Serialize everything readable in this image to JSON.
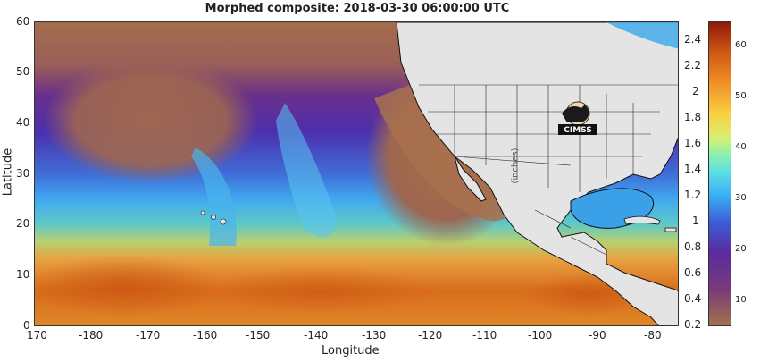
{
  "title": "Morphed composite: 2018-03-30 06:00:00 UTC",
  "x_axis": {
    "label": "Longitude",
    "ticks": [
      "170",
      "-180",
      "-170",
      "-160",
      "-150",
      "-140",
      "-130",
      "-120",
      "-110",
      "-100",
      "-90",
      "-80"
    ]
  },
  "y_axis": {
    "label": "Latitude",
    "ticks": [
      "60",
      "50",
      "40",
      "30",
      "20",
      "10",
      "0"
    ]
  },
  "units_label": "(inches)",
  "colorbar": {
    "left_ticks": [
      "2.4",
      "2.2",
      "2",
      "1.8",
      "1.6",
      "1.4",
      "1.2",
      "1",
      "0.8",
      "0.6",
      "0.4",
      "0.2"
    ],
    "right_ticks": [
      "60",
      "50",
      "40",
      "30",
      "20",
      "10"
    ]
  },
  "logo_text": "CIMSS",
  "colors": {
    "land": "#e4e4e4",
    "ocean_dry": "#a66a4a",
    "moist_blue": "#3a7ae8",
    "tropical_orange": "#e07a20"
  }
}
